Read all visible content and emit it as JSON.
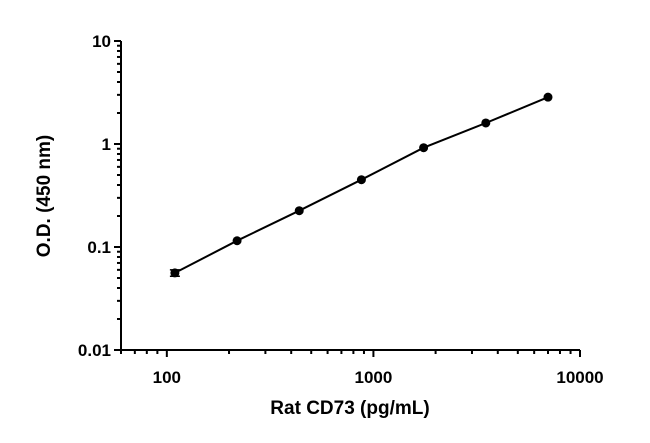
{
  "chart_data": {
    "type": "scatter",
    "xlabel": "Rat CD73 (pg/mL)",
    "ylabel": "O.D. (450 nm)",
    "x_scale": "log",
    "y_scale": "log",
    "xlim": [
      60,
      10000
    ],
    "ylim": [
      0.01,
      10
    ],
    "x_ticks": [
      {
        "value": 100,
        "label": "100"
      },
      {
        "value": 1000,
        "label": "1000"
      },
      {
        "value": 10000,
        "label": "10000"
      }
    ],
    "y_ticks": [
      {
        "value": 0.01,
        "label": "0.01"
      },
      {
        "value": 0.1,
        "label": "0.1"
      },
      {
        "value": 1,
        "label": "1"
      },
      {
        "value": 10,
        "label": "10"
      }
    ],
    "grid": false,
    "legend": "none",
    "series": [
      {
        "x": [
          109.4,
          218.8,
          437.5,
          875,
          1750,
          3500,
          7000
        ],
        "y": [
          0.056,
          0.115,
          0.225,
          0.45,
          0.92,
          1.6,
          2.85
        ],
        "y_err": [
          0.004,
          0,
          0,
          0,
          0,
          0,
          0
        ],
        "fit_line": true,
        "color": "#000000"
      }
    ]
  }
}
